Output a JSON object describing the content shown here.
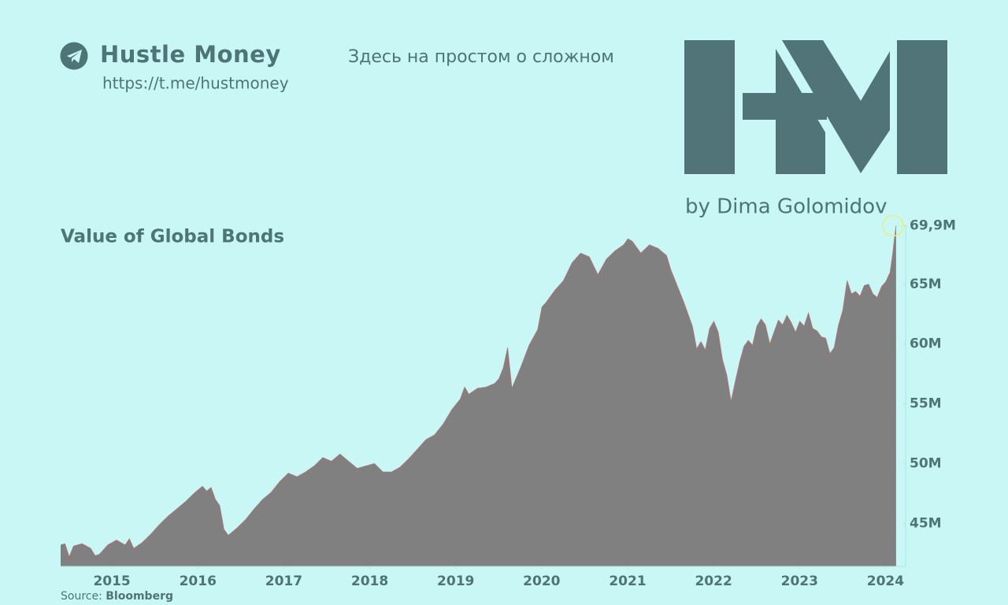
{
  "header": {
    "brand": "Hustle Money",
    "url": "https://t.me/hustmoney",
    "tagline": "Здесь на простом о сложном",
    "author": "by Dima Golomidov"
  },
  "chart_data": {
    "type": "area",
    "title": "Value of Global Bonds",
    "source_label": "Source:",
    "source": "Bloomberg",
    "color": "#808080",
    "edge_color": "#c07070",
    "x": [
      2014.55,
      2014.6,
      2014.65,
      2014.7,
      2014.8,
      2014.9,
      2014.95,
      2015.0,
      2015.1,
      2015.2,
      2015.3,
      2015.35,
      2015.4,
      2015.5,
      2015.6,
      2015.7,
      2015.8,
      2015.9,
      2016.0,
      2016.1,
      2016.2,
      2016.25,
      2016.3,
      2016.35,
      2016.4,
      2016.45,
      2016.5,
      2016.6,
      2016.7,
      2016.8,
      2016.9,
      2017.0,
      2017.1,
      2017.2,
      2017.3,
      2017.4,
      2017.5,
      2017.6,
      2017.7,
      2017.8,
      2017.9,
      2018.0,
      2018.1,
      2018.2,
      2018.3,
      2018.4,
      2018.5,
      2018.6,
      2018.7,
      2018.8,
      2018.9,
      2019.0,
      2019.1,
      2019.2,
      2019.25,
      2019.3,
      2019.4,
      2019.5,
      2019.6,
      2019.65,
      2019.7,
      2019.75,
      2019.8,
      2019.9,
      2020.0,
      2020.1,
      2020.15,
      2020.2,
      2020.3,
      2020.4,
      2020.5,
      2020.6,
      2020.7,
      2020.8,
      2020.9,
      2021.0,
      2021.1,
      2021.15,
      2021.2,
      2021.3,
      2021.4,
      2021.5,
      2021.6,
      2021.65,
      2021.7,
      2021.8,
      2021.9,
      2021.95,
      2022.0,
      2022.05,
      2022.1,
      2022.15,
      2022.2,
      2022.25,
      2022.3,
      2022.35,
      2022.4,
      2022.45,
      2022.5,
      2022.55,
      2022.6,
      2022.65,
      2022.7,
      2022.75,
      2022.8,
      2022.9,
      2022.95,
      2023.0,
      2023.05,
      2023.1,
      2023.15,
      2023.2,
      2023.25,
      2023.3,
      2023.35,
      2023.4,
      2023.45,
      2023.5,
      2023.55,
      2023.6,
      2023.65,
      2023.7,
      2023.75,
      2023.8,
      2023.85,
      2023.9,
      2023.95,
      2024.0,
      2024.05,
      2024.1,
      2024.15,
      2024.2,
      2024.23,
      2024.25,
      2024.27
    ],
    "values": [
      43.2,
      43.3,
      42.2,
      43.1,
      43.3,
      42.9,
      42.3,
      42.4,
      43.2,
      43.6,
      43.2,
      43.7,
      42.9,
      43.4,
      44.1,
      44.9,
      45.6,
      46.2,
      46.8,
      47.5,
      48.1,
      47.7,
      48.0,
      47.0,
      46.5,
      44.5,
      44.0,
      44.6,
      45.3,
      46.2,
      47.0,
      47.6,
      48.5,
      49.2,
      48.9,
      49.3,
      49.8,
      50.5,
      50.2,
      50.8,
      50.2,
      49.6,
      49.8,
      50.0,
      49.3,
      49.3,
      49.7,
      50.4,
      51.2,
      52.0,
      52.4,
      53.3,
      54.5,
      55.4,
      56.4,
      55.8,
      56.3,
      56.4,
      56.7,
      57.1,
      58.0,
      59.7,
      56.3,
      58.0,
      59.9,
      61.2,
      63.1,
      63.5,
      64.5,
      65.3,
      66.8,
      67.6,
      67.3,
      65.8,
      67.1,
      67.8,
      68.3,
      68.8,
      68.6,
      67.6,
      68.3,
      68.0,
      67.4,
      66.2,
      65.3,
      63.5,
      61.5,
      59.6,
      60.2,
      59.5,
      61.3,
      61.9,
      61.0,
      58.7,
      57.4,
      55.2,
      56.9,
      58.5,
      59.8,
      60.3,
      59.9,
      61.5,
      62.1,
      61.6,
      60.0,
      62.0,
      61.6,
      62.4,
      61.8,
      61.0,
      61.9,
      61.5,
      62.6,
      61.3,
      61.1,
      60.6,
      60.5,
      59.2,
      59.7,
      61.6,
      62.8,
      65.3,
      64.2,
      64.4,
      64.0,
      64.9,
      65.0,
      64.2,
      63.9,
      64.8,
      65.2,
      66.0,
      67.5,
      68.8,
      69.9
    ],
    "xlim": [
      2014.55,
      2024.28
    ],
    "xticks": [
      2015,
      2016,
      2017,
      2018,
      2019,
      2020,
      2021,
      2022,
      2023,
      2024
    ],
    "ylim": [
      41.4,
      70.0
    ],
    "yticks": [
      {
        "value": 45,
        "label": "45M"
      },
      {
        "value": 50,
        "label": "50M"
      },
      {
        "value": 55,
        "label": "55M"
      },
      {
        "value": 60,
        "label": "60M"
      },
      {
        "value": 65,
        "label": "65M"
      },
      {
        "value": 69.9,
        "label": "69,9M"
      }
    ],
    "highlight_color": "#e8f07a",
    "grid": false
  }
}
